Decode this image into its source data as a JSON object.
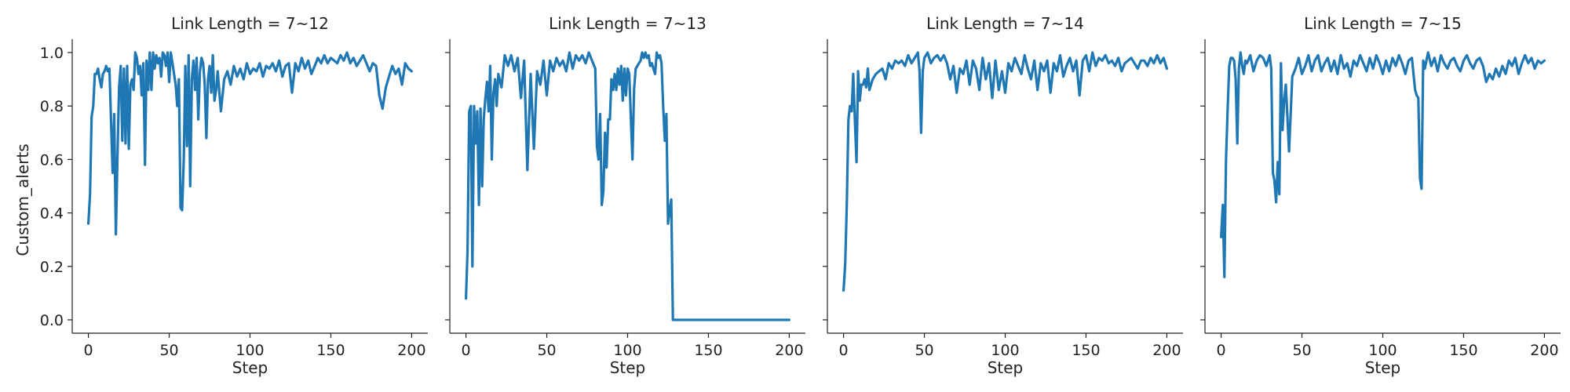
{
  "figure": {
    "ylabel": "Custom_alerts",
    "xlabel": "Step",
    "line_color": "#1f77b4"
  },
  "chart_data": [
    {
      "type": "line",
      "title": "Link Length = 7~12",
      "xlabel": "Step",
      "ylabel": "Custom_alerts",
      "xlim": [
        -10,
        210
      ],
      "ylim": [
        -0.05,
        1.05
      ],
      "xticks": [
        0,
        50,
        100,
        150,
        200
      ],
      "yticks": [
        0.0,
        0.2,
        0.4,
        0.6,
        0.8,
        1.0
      ],
      "grid": false,
      "series": [
        {
          "color": "#1f77b4",
          "x": [
            0,
            1,
            2,
            3,
            4,
            5,
            6,
            7,
            8,
            9,
            10,
            11,
            12,
            13,
            14,
            15,
            16,
            17,
            18,
            19,
            20,
            21,
            22,
            23,
            24,
            25,
            26,
            27,
            28,
            29,
            30,
            31,
            32,
            33,
            34,
            35,
            36,
            37,
            38,
            39,
            40,
            41,
            42,
            43,
            44,
            45,
            46,
            47,
            48,
            49,
            50,
            51,
            52,
            53,
            54,
            55,
            56,
            57,
            58,
            59,
            60,
            61,
            62,
            63,
            64,
            65,
            66,
            67,
            68,
            69,
            70,
            71,
            72,
            73,
            74,
            75,
            76,
            77,
            78,
            79,
            80,
            82,
            84,
            86,
            88,
            90,
            92,
            94,
            96,
            98,
            100,
            102,
            104,
            106,
            108,
            110,
            112,
            114,
            116,
            118,
            120,
            122,
            124,
            126,
            128,
            130,
            132,
            134,
            136,
            138,
            140,
            142,
            144,
            146,
            148,
            150,
            152,
            154,
            156,
            158,
            160,
            162,
            164,
            166,
            168,
            170,
            172,
            174,
            176,
            178,
            180,
            182,
            184,
            186,
            188,
            190,
            192,
            194,
            196,
            198,
            200
          ],
          "y": [
            0.36,
            0.47,
            0.76,
            0.8,
            0.92,
            0.92,
            0.94,
            0.9,
            0.87,
            0.92,
            0.93,
            0.95,
            0.93,
            0.94,
            0.75,
            0.55,
            0.77,
            0.32,
            0.62,
            0.87,
            0.95,
            0.67,
            0.94,
            0.66,
            0.95,
            0.64,
            0.88,
            0.9,
            0.86,
            1.0,
            0.98,
            0.92,
            0.95,
            0.84,
            0.96,
            0.58,
            0.97,
            0.86,
            1.0,
            0.86,
            1.0,
            0.94,
            0.99,
            0.96,
            0.98,
            0.91,
            1.0,
            0.99,
            0.95,
            1.0,
            0.89,
            1.0,
            0.96,
            0.92,
            0.88,
            0.8,
            0.9,
            0.42,
            0.41,
            0.6,
            0.95,
            0.65,
            0.99,
            0.5,
            0.9,
            0.97,
            0.86,
            0.98,
            0.75,
            0.93,
            0.98,
            0.96,
            0.88,
            0.68,
            0.9,
            0.95,
            0.85,
            0.99,
            0.82,
            0.86,
            0.93,
            0.78,
            0.9,
            0.93,
            0.88,
            0.95,
            0.91,
            0.94,
            0.9,
            0.96,
            0.92,
            0.94,
            0.93,
            0.96,
            0.91,
            0.95,
            0.94,
            0.96,
            0.93,
            0.97,
            0.91,
            0.95,
            0.96,
            0.85,
            0.96,
            0.93,
            0.98,
            0.94,
            0.97,
            0.92,
            0.95,
            0.98,
            0.96,
            0.99,
            0.96,
            0.98,
            0.97,
            0.96,
            0.99,
            0.97,
            1.0,
            0.96,
            0.98,
            0.95,
            0.97,
            0.99,
            0.96,
            0.93,
            0.96,
            0.95,
            0.84,
            0.79,
            0.87,
            0.91,
            0.95,
            0.92,
            0.94,
            0.88,
            0.96,
            0.94,
            0.93
          ]
        }
      ]
    },
    {
      "type": "line",
      "title": "Link Length = 7~13",
      "xlabel": "Step",
      "ylabel": "",
      "xlim": [
        -10,
        210
      ],
      "ylim": [
        -0.05,
        1.05
      ],
      "xticks": [
        0,
        50,
        100,
        150,
        200
      ],
      "yticks": [
        0.0,
        0.2,
        0.4,
        0.6,
        0.8,
        1.0
      ],
      "grid": false,
      "series": [
        {
          "color": "#1f77b4",
          "x": [
            0,
            1,
            2,
            3,
            4,
            5,
            6,
            7,
            8,
            9,
            10,
            11,
            12,
            13,
            14,
            15,
            16,
            17,
            18,
            19,
            20,
            22,
            24,
            26,
            28,
            30,
            32,
            34,
            36,
            38,
            40,
            42,
            44,
            46,
            48,
            50,
            52,
            54,
            56,
            58,
            60,
            62,
            64,
            66,
            68,
            70,
            72,
            74,
            76,
            78,
            80,
            81,
            82,
            83,
            84,
            85,
            86,
            87,
            88,
            89,
            90,
            91,
            92,
            93,
            94,
            95,
            96,
            97,
            98,
            99,
            100,
            101,
            102,
            103,
            104,
            105,
            106,
            107,
            108,
            109,
            110,
            111,
            112,
            113,
            114,
            115,
            116,
            117,
            118,
            119,
            120,
            121,
            122,
            123,
            124,
            125,
            126,
            127,
            128,
            130,
            140,
            150,
            160,
            170,
            180,
            190,
            200
          ],
          "y": [
            0.08,
            0.26,
            0.78,
            0.8,
            0.2,
            0.8,
            0.66,
            0.78,
            0.43,
            0.79,
            0.5,
            0.75,
            0.83,
            0.89,
            0.78,
            0.95,
            0.6,
            0.85,
            0.9,
            0.8,
            0.92,
            0.87,
            0.99,
            0.95,
            0.99,
            0.93,
            0.98,
            0.83,
            0.97,
            0.56,
            0.92,
            0.64,
            0.93,
            0.88,
            0.97,
            0.84,
            0.97,
            0.93,
            0.98,
            0.95,
            0.97,
            0.93,
            1.0,
            0.94,
            0.99,
            0.97,
            0.99,
            0.96,
            1.0,
            0.97,
            0.94,
            0.65,
            0.6,
            0.77,
            0.43,
            0.48,
            0.7,
            0.57,
            0.75,
            0.75,
            0.9,
            0.86,
            0.92,
            0.86,
            0.94,
            0.88,
            0.95,
            0.82,
            0.94,
            0.84,
            0.94,
            0.92,
            0.76,
            0.6,
            0.86,
            0.94,
            0.95,
            0.96,
            0.97,
            1.0,
            0.98,
            1.0,
            0.98,
            0.99,
            0.95,
            0.96,
            0.94,
            0.92,
            1.0,
            0.98,
            0.99,
            0.96,
            0.8,
            0.67,
            0.77,
            0.36,
            0.41,
            0.45,
            0.0,
            0.0,
            0.0,
            0.0,
            0.0,
            0.0,
            0.0,
            0.0,
            0.0
          ]
        }
      ]
    },
    {
      "type": "line",
      "title": "Link Length = 7~14",
      "xlabel": "Step",
      "ylabel": "",
      "xlim": [
        -10,
        210
      ],
      "ylim": [
        -0.05,
        1.05
      ],
      "xticks": [
        0,
        50,
        100,
        150,
        200
      ],
      "yticks": [
        0.0,
        0.2,
        0.4,
        0.6,
        0.8,
        1.0
      ],
      "grid": false,
      "series": [
        {
          "color": "#1f77b4",
          "x": [
            0,
            1,
            2,
            3,
            4,
            5,
            6,
            7,
            8,
            9,
            10,
            11,
            12,
            13,
            14,
            15,
            16,
            18,
            20,
            22,
            24,
            26,
            28,
            30,
            32,
            34,
            36,
            38,
            40,
            42,
            44,
            46,
            47,
            48,
            49,
            50,
            52,
            54,
            56,
            58,
            60,
            62,
            64,
            66,
            68,
            70,
            72,
            74,
            76,
            78,
            80,
            82,
            84,
            86,
            88,
            90,
            92,
            94,
            96,
            98,
            100,
            102,
            104,
            106,
            108,
            110,
            112,
            114,
            116,
            118,
            120,
            122,
            124,
            126,
            128,
            130,
            132,
            134,
            136,
            138,
            140,
            142,
            144,
            146,
            148,
            150,
            152,
            154,
            156,
            158,
            160,
            162,
            164,
            166,
            168,
            170,
            172,
            174,
            176,
            178,
            180,
            182,
            184,
            186,
            188,
            190,
            192,
            194,
            196,
            198,
            200
          ],
          "y": [
            0.11,
            0.21,
            0.43,
            0.75,
            0.8,
            0.78,
            0.92,
            0.75,
            0.59,
            0.93,
            0.82,
            0.88,
            0.88,
            0.9,
            0.87,
            0.94,
            0.86,
            0.9,
            0.92,
            0.93,
            0.94,
            0.9,
            0.96,
            0.94,
            0.97,
            0.96,
            0.97,
            0.95,
            0.99,
            0.96,
            0.98,
            1.0,
            0.93,
            0.7,
            0.93,
            0.98,
            1.0,
            0.96,
            0.98,
            0.99,
            0.97,
            0.99,
            0.96,
            0.9,
            0.95,
            0.85,
            0.94,
            0.92,
            0.97,
            0.88,
            0.97,
            0.94,
            0.86,
            0.98,
            0.9,
            0.96,
            0.83,
            0.97,
            0.86,
            0.93,
            0.85,
            0.96,
            0.93,
            0.98,
            0.95,
            0.92,
            0.99,
            0.94,
            0.9,
            0.97,
            0.86,
            0.96,
            0.93,
            0.97,
            0.85,
            0.96,
            0.93,
            0.99,
            0.91,
            0.95,
            0.98,
            0.93,
            0.97,
            0.84,
            0.97,
            0.99,
            0.93,
            1.0,
            0.95,
            0.98,
            0.97,
            0.99,
            0.96,
            0.97,
            0.95,
            0.98,
            0.93,
            0.96,
            0.97,
            0.98,
            0.96,
            0.94,
            0.97,
            0.97,
            0.95,
            0.98,
            0.96,
            0.99,
            0.96,
            0.98,
            0.94
          ]
        }
      ]
    },
    {
      "type": "line",
      "title": "Link Length = 7~15",
      "xlabel": "Step",
      "ylabel": "",
      "xlim": [
        -10,
        210
      ],
      "ylim": [
        -0.05,
        1.05
      ],
      "xticks": [
        0,
        50,
        100,
        150,
        200
      ],
      "yticks": [
        0.0,
        0.2,
        0.4,
        0.6,
        0.8,
        1.0
      ],
      "grid": false,
      "series": [
        {
          "color": "#1f77b4",
          "x": [
            0,
            1,
            2,
            3,
            4,
            5,
            6,
            7,
            8,
            9,
            10,
            11,
            12,
            13,
            14,
            15,
            16,
            18,
            20,
            22,
            24,
            26,
            28,
            30,
            31,
            32,
            33,
            34,
            35,
            36,
            37,
            38,
            39,
            40,
            41,
            42,
            44,
            46,
            48,
            50,
            52,
            54,
            56,
            58,
            60,
            62,
            64,
            66,
            68,
            70,
            72,
            74,
            76,
            78,
            80,
            82,
            84,
            86,
            88,
            90,
            92,
            94,
            96,
            98,
            100,
            102,
            104,
            106,
            108,
            110,
            112,
            114,
            116,
            118,
            120,
            121,
            122,
            123,
            124,
            125,
            126,
            128,
            130,
            132,
            134,
            136,
            138,
            140,
            142,
            144,
            146,
            148,
            150,
            152,
            154,
            156,
            158,
            160,
            162,
            164,
            166,
            168,
            170,
            172,
            174,
            176,
            178,
            180,
            182,
            184,
            186,
            188,
            190,
            192,
            194,
            196,
            198,
            200
          ],
          "y": [
            0.31,
            0.43,
            0.16,
            0.6,
            0.78,
            0.95,
            0.98,
            0.98,
            0.97,
            0.9,
            0.66,
            0.94,
            1.0,
            0.95,
            0.92,
            0.97,
            0.96,
            0.99,
            0.93,
            0.97,
            0.99,
            0.98,
            0.95,
            0.99,
            0.94,
            0.55,
            0.52,
            0.44,
            0.59,
            0.47,
            0.96,
            0.71,
            0.82,
            0.88,
            0.76,
            0.63,
            0.91,
            0.94,
            0.98,
            0.92,
            0.95,
            0.99,
            0.93,
            0.97,
            0.99,
            0.93,
            0.96,
            0.98,
            0.93,
            0.97,
            0.92,
            0.99,
            0.94,
            0.96,
            0.91,
            0.97,
            0.95,
            0.99,
            0.96,
            0.93,
            0.98,
            0.94,
            0.99,
            0.96,
            0.92,
            0.97,
            0.93,
            0.98,
            0.95,
            0.99,
            0.96,
            0.92,
            0.97,
            0.98,
            0.86,
            0.84,
            0.83,
            0.53,
            0.49,
            0.97,
            0.94,
            1.0,
            0.95,
            0.98,
            0.93,
            0.99,
            0.96,
            0.94,
            0.97,
            0.98,
            0.95,
            0.93,
            0.97,
            0.99,
            0.96,
            0.94,
            0.97,
            0.98,
            0.95,
            0.89,
            0.92,
            0.9,
            0.94,
            0.91,
            0.95,
            0.92,
            0.97,
            0.95,
            0.98,
            0.92,
            0.96,
            0.99,
            0.96,
            0.98,
            0.94,
            0.97,
            0.96,
            0.97
          ]
        }
      ]
    }
  ]
}
